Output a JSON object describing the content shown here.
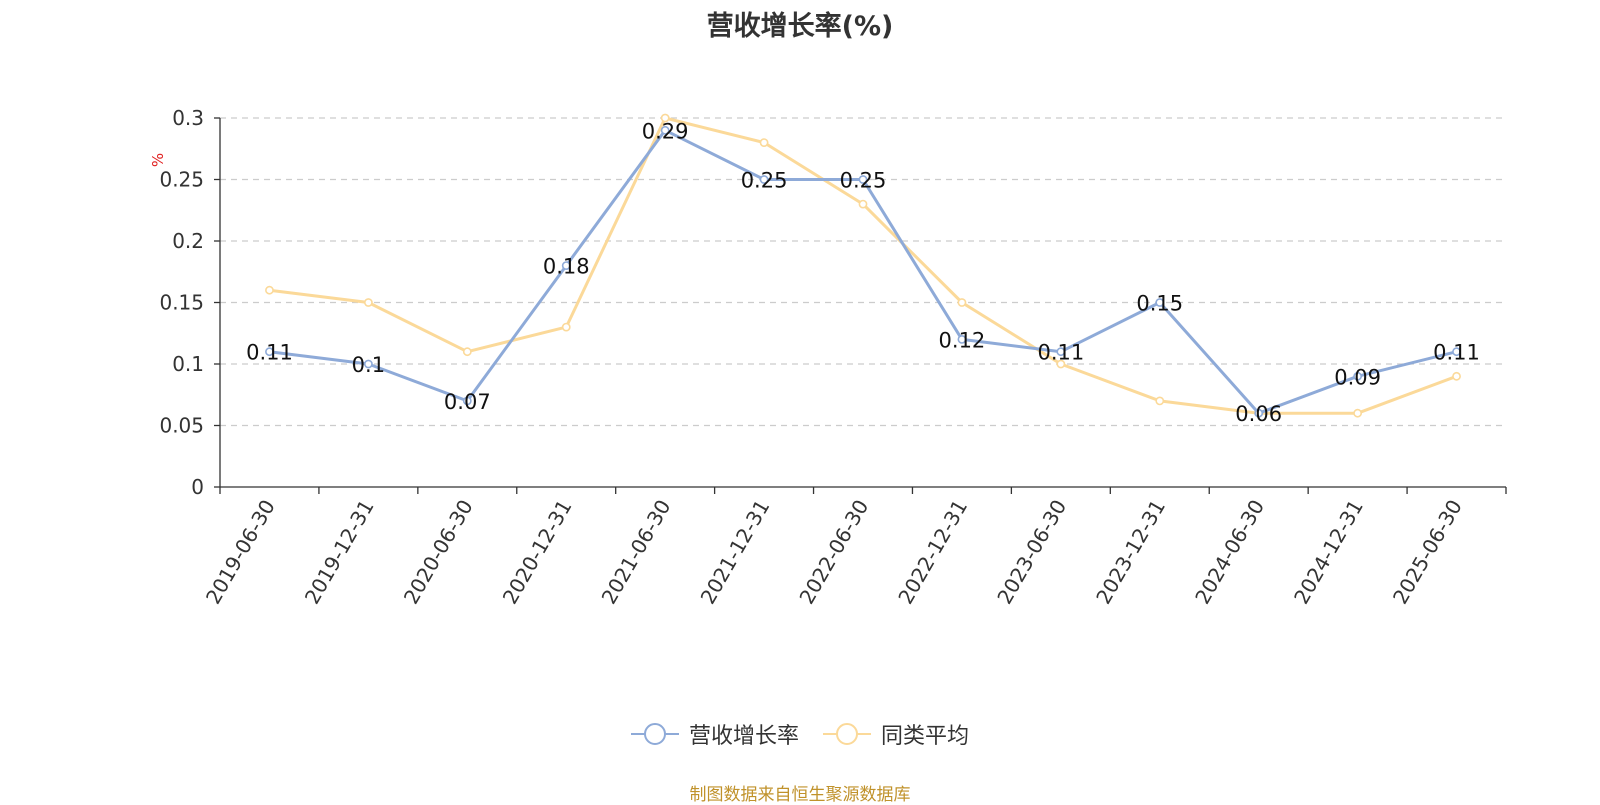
{
  "chart_data": {
    "type": "line",
    "title": "营收增长率(%)",
    "ylabel": "%",
    "ylim": [
      0,
      0.3
    ],
    "yticks": [
      0,
      0.05,
      0.1,
      0.15,
      0.2,
      0.25,
      0.3
    ],
    "ytick_labels": [
      "0",
      "0.05",
      "0.1",
      "0.15",
      "0.2",
      "0.25",
      "0.3"
    ],
    "grid": true,
    "legend_position": "bottom-center",
    "categories": [
      "2019-06-30",
      "2019-12-31",
      "2020-06-30",
      "2020-12-31",
      "2021-06-30",
      "2021-12-31",
      "2022-06-30",
      "2022-12-31",
      "2023-06-30",
      "2023-12-31",
      "2024-06-30",
      "2024-12-31",
      "2025-06-30"
    ],
    "series": [
      {
        "name": "营收增长率",
        "color": "#8eaad8",
        "values": [
          0.11,
          0.1,
          0.07,
          0.18,
          0.29,
          0.25,
          0.25,
          0.12,
          0.11,
          0.15,
          0.06,
          0.09,
          0.11
        ],
        "data_labels": [
          "0.11",
          "0.1",
          "0.07",
          "0.18",
          "0.29",
          "0.25",
          "0.25",
          "0.12",
          "0.11",
          "0.15",
          "0.06",
          "0.09",
          "0.11"
        ]
      },
      {
        "name": "同类平均",
        "color": "#fbd999",
        "values": [
          0.16,
          0.15,
          0.11,
          0.13,
          0.3,
          0.28,
          0.23,
          0.15,
          0.1,
          0.07,
          0.06,
          0.06,
          0.09
        ]
      }
    ]
  },
  "footer": {
    "source": "制图数据来自恒生聚源数据库"
  }
}
